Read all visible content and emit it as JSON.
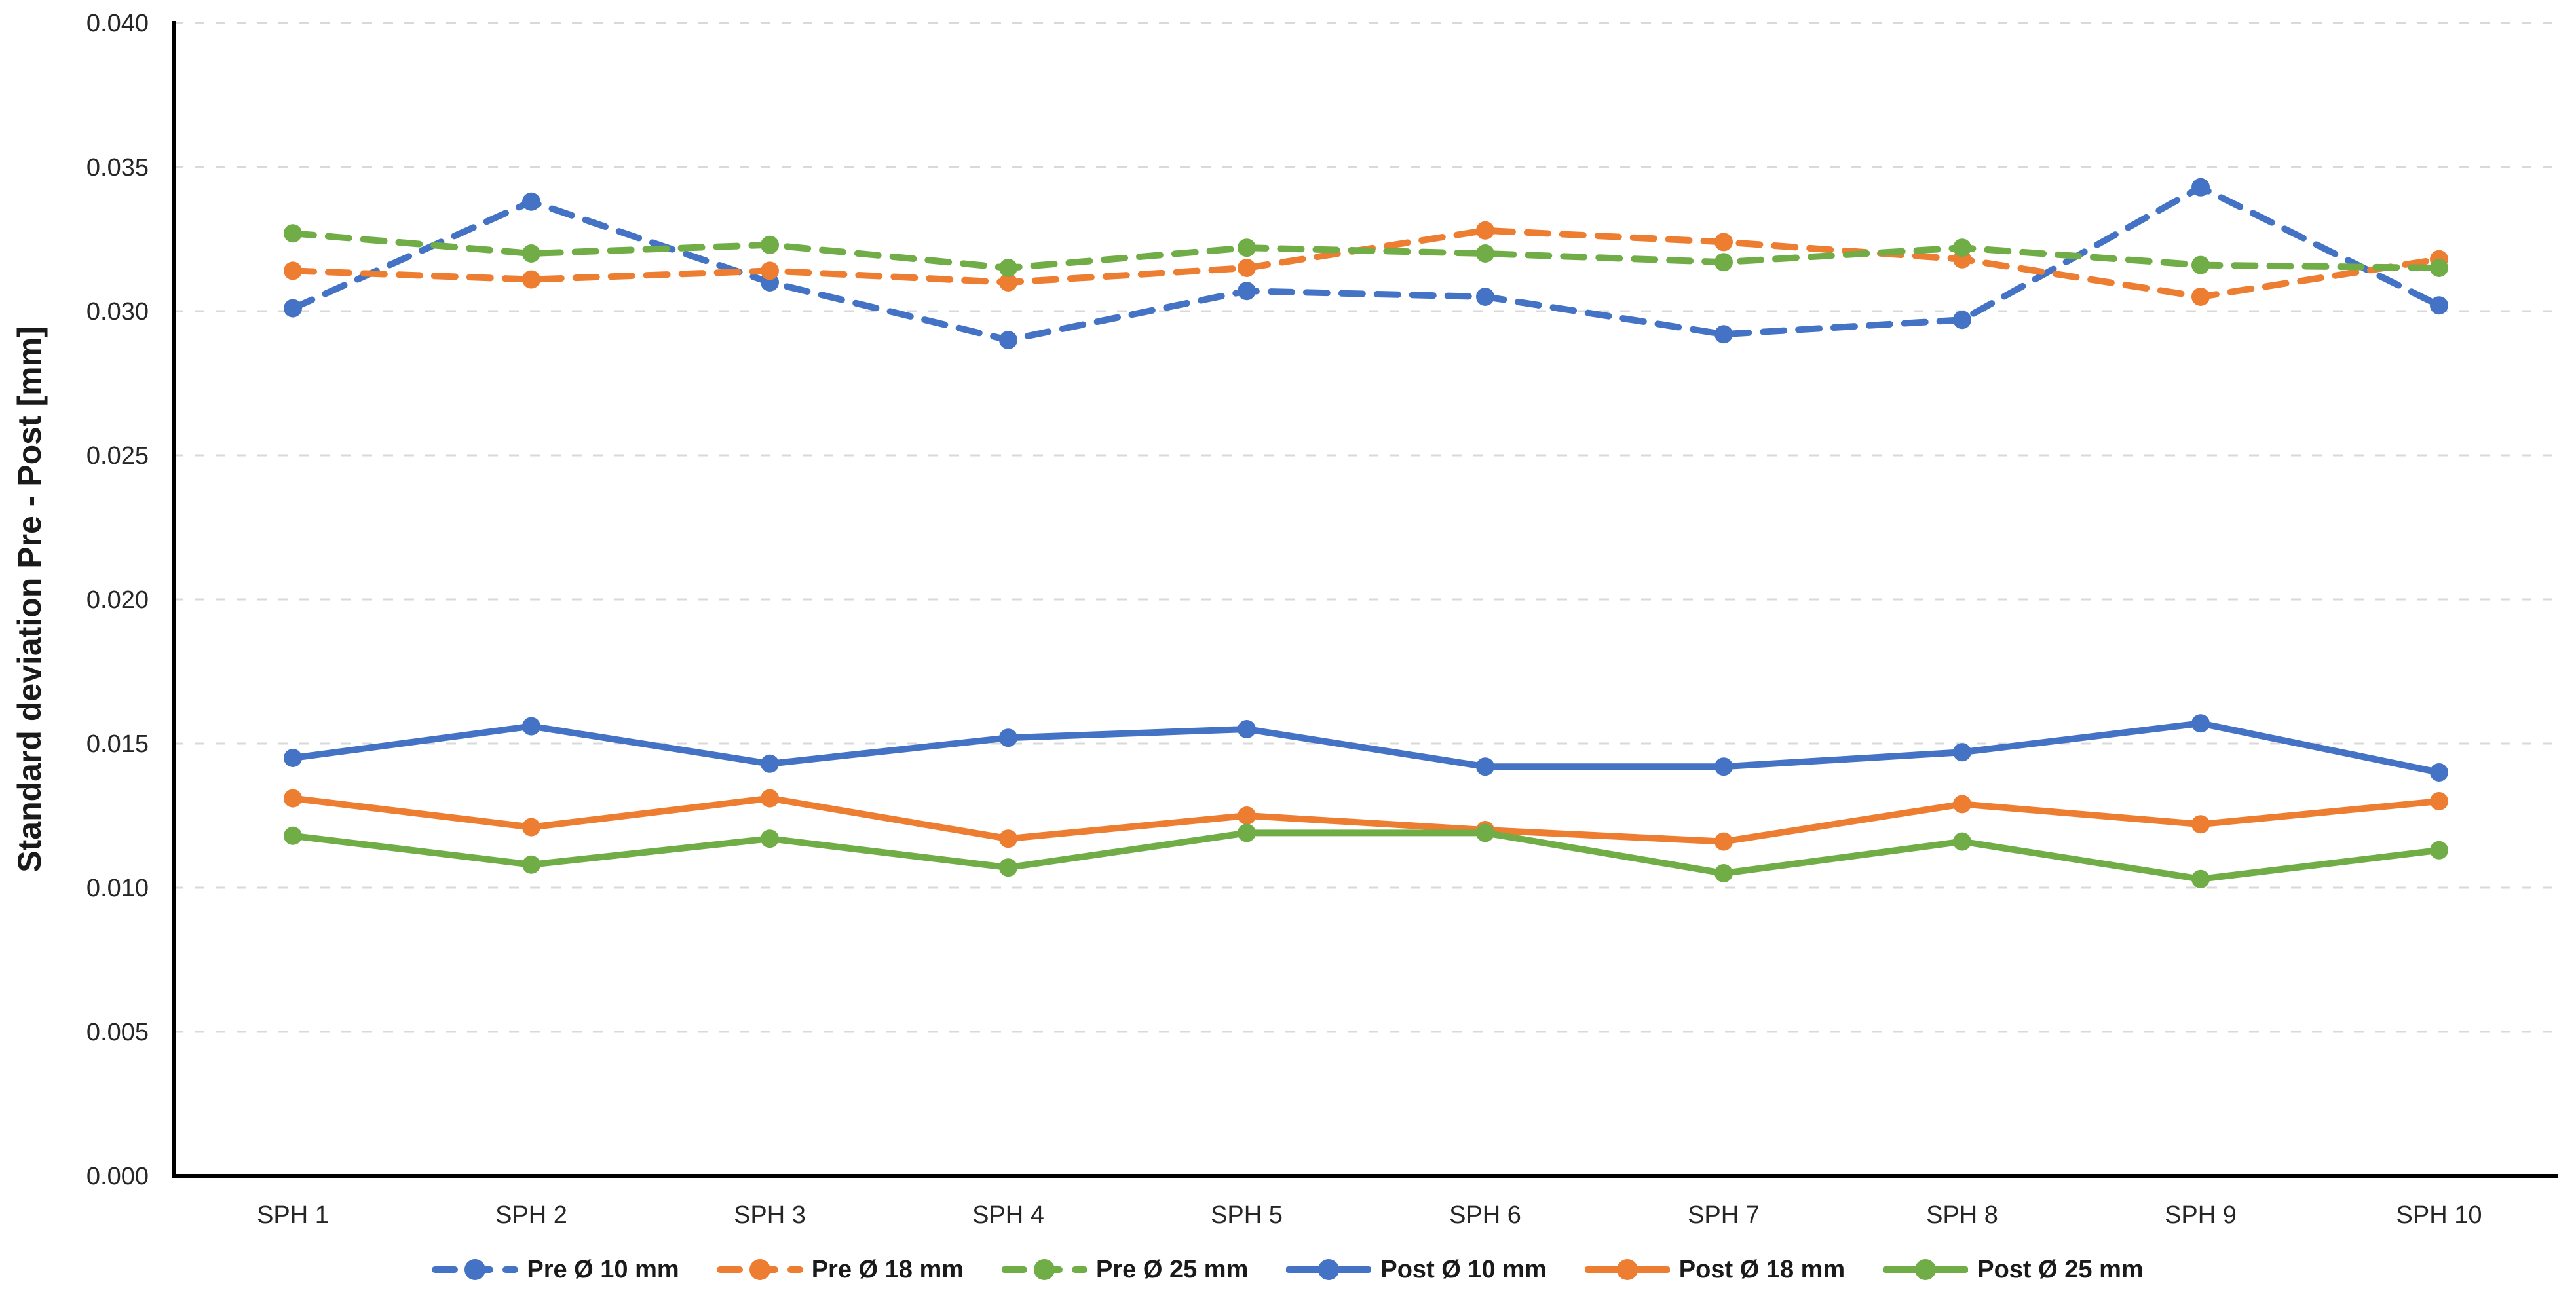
{
  "chart_data": {
    "type": "line",
    "title": "",
    "ylabel": "Standard deviation Pre - Post [mm]",
    "xlabel": "",
    "ylim": [
      0,
      0.04
    ],
    "ytick_step": 0.005,
    "ytick_decimals": 3,
    "ytick_labels": [
      "0.000",
      "0.005",
      "0.010",
      "0.015",
      "0.020",
      "0.025",
      "0.030",
      "0.035",
      "0.040"
    ],
    "grid": "horizontal dashed gridlines at every 0.005",
    "legend_position": "bottom center",
    "categories": [
      "SPH 1",
      "SPH 2",
      "SPH 3",
      "SPH 4",
      "SPH 5",
      "SPH 6",
      "SPH 7",
      "SPH 8",
      "SPH 9",
      "SPH 10"
    ],
    "series": [
      {
        "name": "Pre Ø 10 mm",
        "color": "#4472C4",
        "style": "dashed",
        "values": [
          0.0301,
          0.0338,
          0.031,
          0.029,
          0.0307,
          0.0305,
          0.0292,
          0.0297,
          0.0343,
          0.0302
        ]
      },
      {
        "name": "Pre Ø 18 mm",
        "color": "#ED7D31",
        "style": "dashed",
        "values": [
          0.0314,
          0.0311,
          0.0314,
          0.031,
          0.0315,
          0.0328,
          0.0324,
          0.0318,
          0.0305,
          0.0318
        ]
      },
      {
        "name": "Pre Ø 25 mm",
        "color": "#70AD47",
        "style": "dashed",
        "values": [
          0.0327,
          0.032,
          0.0323,
          0.0315,
          0.0322,
          0.032,
          0.0317,
          0.0322,
          0.0316,
          0.0315
        ]
      },
      {
        "name": "Post Ø 10 mm",
        "color": "#4472C4",
        "style": "solid",
        "values": [
          0.0145,
          0.0156,
          0.0143,
          0.0152,
          0.0155,
          0.0142,
          0.0142,
          0.0147,
          0.0157,
          0.014
        ]
      },
      {
        "name": "Post Ø 18 mm",
        "color": "#ED7D31",
        "style": "solid",
        "values": [
          0.0131,
          0.0121,
          0.0131,
          0.0117,
          0.0125,
          0.012,
          0.0116,
          0.0129,
          0.0122,
          0.013
        ]
      },
      {
        "name": "Post Ø 25 mm",
        "color": "#70AD47",
        "style": "solid",
        "values": [
          0.0118,
          0.0108,
          0.0117,
          0.0107,
          0.0119,
          0.0119,
          0.0105,
          0.0116,
          0.0103,
          0.0113
        ]
      }
    ],
    "colors": {
      "axis": "#000000",
      "grid": "#D9D9D9",
      "tick_label": "#262626",
      "legend_text": "#1a1a1a",
      "background": "#ffffff"
    }
  }
}
